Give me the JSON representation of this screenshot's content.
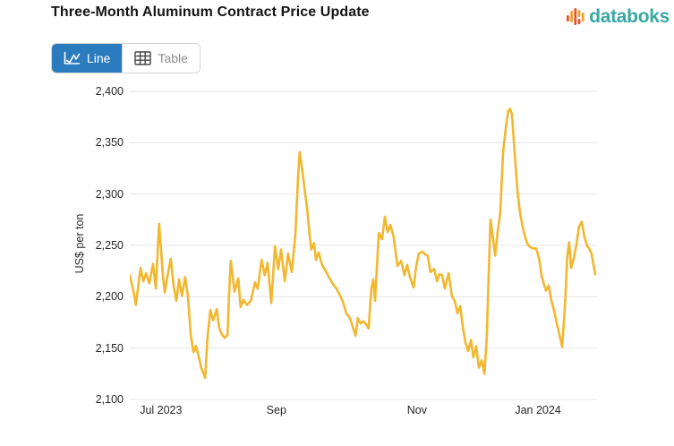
{
  "page": {
    "title": "Three-Month Aluminum Contract Price Update"
  },
  "brand": {
    "name": "databoks",
    "wordmark_color": "#38A9A2",
    "icon": "bar-wave-icon",
    "icon_colors": {
      "red": "#E8502C",
      "orange": "#F2A12D"
    }
  },
  "toolbar": {
    "line_label": "Line",
    "table_label": "Table",
    "active_color": "#2B7CBF",
    "active_text_color": "#ffffff",
    "inactive_text_color": "#8d8d8d"
  },
  "chart_data": {
    "type": "line",
    "title": "Three-Month Aluminum Contract Price Update",
    "xlabel": "",
    "ylabel": "US$ per ton",
    "ylim": [
      2100,
      2400
    ],
    "y_ticks": [
      2100,
      2150,
      2200,
      2250,
      2300,
      2350,
      2400
    ],
    "y_tick_labels": [
      "2,100",
      "2,150",
      "2,200",
      "2,250",
      "2,300",
      "2,350",
      "2,400"
    ],
    "x_ticks": [
      {
        "label": "Jul 2023",
        "t": 0.067
      },
      {
        "label": "Sep",
        "t": 0.315
      },
      {
        "label": "Nov",
        "t": 0.617
      },
      {
        "label": "Jan 2024",
        "t": 0.877
      }
    ],
    "x_unit": "daily prices, mid-June 2023 to early-February 2024 (t = fraction of x-axis)",
    "grid": true,
    "grid_color": "#e5e5e5",
    "legend": false,
    "line_color": "#F1B72F",
    "points": [
      [
        0.0,
        2221
      ],
      [
        0.008,
        2205
      ],
      [
        0.013,
        2192
      ],
      [
        0.023,
        2228
      ],
      [
        0.029,
        2215
      ],
      [
        0.035,
        2223
      ],
      [
        0.042,
        2213
      ],
      [
        0.05,
        2232
      ],
      [
        0.056,
        2208
      ],
      [
        0.06,
        2245
      ],
      [
        0.063,
        2271
      ],
      [
        0.067,
        2247
      ],
      [
        0.071,
        2222
      ],
      [
        0.075,
        2204
      ],
      [
        0.083,
        2225
      ],
      [
        0.088,
        2237
      ],
      [
        0.094,
        2211
      ],
      [
        0.1,
        2196
      ],
      [
        0.106,
        2217
      ],
      [
        0.112,
        2201
      ],
      [
        0.119,
        2219
      ],
      [
        0.125,
        2200
      ],
      [
        0.131,
        2163
      ],
      [
        0.137,
        2146
      ],
      [
        0.142,
        2152
      ],
      [
        0.148,
        2142
      ],
      [
        0.154,
        2130
      ],
      [
        0.162,
        2121
      ],
      [
        0.167,
        2160
      ],
      [
        0.173,
        2187
      ],
      [
        0.179,
        2177
      ],
      [
        0.187,
        2188
      ],
      [
        0.192,
        2170
      ],
      [
        0.198,
        2163
      ],
      [
        0.204,
        2160
      ],
      [
        0.21,
        2163
      ],
      [
        0.213,
        2200
      ],
      [
        0.217,
        2235
      ],
      [
        0.225,
        2205
      ],
      [
        0.233,
        2218
      ],
      [
        0.238,
        2190
      ],
      [
        0.244,
        2197
      ],
      [
        0.252,
        2192
      ],
      [
        0.26,
        2196
      ],
      [
        0.269,
        2214
      ],
      [
        0.275,
        2208
      ],
      [
        0.283,
        2236
      ],
      [
        0.29,
        2221
      ],
      [
        0.296,
        2233
      ],
      [
        0.304,
        2194
      ],
      [
        0.312,
        2249
      ],
      [
        0.319,
        2227
      ],
      [
        0.325,
        2246
      ],
      [
        0.333,
        2215
      ],
      [
        0.34,
        2242
      ],
      [
        0.348,
        2224
      ],
      [
        0.356,
        2262
      ],
      [
        0.362,
        2320
      ],
      [
        0.365,
        2341
      ],
      [
        0.371,
        2322
      ],
      [
        0.377,
        2300
      ],
      [
        0.381,
        2286
      ],
      [
        0.387,
        2258
      ],
      [
        0.39,
        2246
      ],
      [
        0.396,
        2252
      ],
      [
        0.4,
        2236
      ],
      [
        0.406,
        2243
      ],
      [
        0.413,
        2231
      ],
      [
        0.421,
        2225
      ],
      [
        0.429,
        2218
      ],
      [
        0.437,
        2212
      ],
      [
        0.444,
        2208
      ],
      [
        0.452,
        2201
      ],
      [
        0.458,
        2195
      ],
      [
        0.465,
        2184
      ],
      [
        0.473,
        2179
      ],
      [
        0.481,
        2168
      ],
      [
        0.485,
        2162
      ],
      [
        0.49,
        2179
      ],
      [
        0.496,
        2174
      ],
      [
        0.502,
        2176
      ],
      [
        0.508,
        2173
      ],
      [
        0.513,
        2169
      ],
      [
        0.519,
        2208
      ],
      [
        0.523,
        2217
      ],
      [
        0.527,
        2196
      ],
      [
        0.535,
        2262
      ],
      [
        0.542,
        2256
      ],
      [
        0.548,
        2278
      ],
      [
        0.554,
        2263
      ],
      [
        0.56,
        2270
      ],
      [
        0.567,
        2258
      ],
      [
        0.575,
        2230
      ],
      [
        0.583,
        2235
      ],
      [
        0.59,
        2221
      ],
      [
        0.596,
        2231
      ],
      [
        0.602,
        2219
      ],
      [
        0.61,
        2209
      ],
      [
        0.615,
        2229
      ],
      [
        0.621,
        2242
      ],
      [
        0.629,
        2244
      ],
      [
        0.635,
        2241
      ],
      [
        0.64,
        2240
      ],
      [
        0.646,
        2224
      ],
      [
        0.654,
        2227
      ],
      [
        0.66,
        2215
      ],
      [
        0.665,
        2222
      ],
      [
        0.671,
        2221
      ],
      [
        0.677,
        2208
      ],
      [
        0.685,
        2223
      ],
      [
        0.692,
        2201
      ],
      [
        0.698,
        2196
      ],
      [
        0.704,
        2184
      ],
      [
        0.71,
        2191
      ],
      [
        0.715,
        2172
      ],
      [
        0.721,
        2156
      ],
      [
        0.727,
        2147
      ],
      [
        0.733,
        2158
      ],
      [
        0.738,
        2141
      ],
      [
        0.744,
        2152
      ],
      [
        0.75,
        2131
      ],
      [
        0.756,
        2138
      ],
      [
        0.762,
        2125
      ],
      [
        0.767,
        2160
      ],
      [
        0.771,
        2220
      ],
      [
        0.775,
        2275
      ],
      [
        0.781,
        2255
      ],
      [
        0.785,
        2240
      ],
      [
        0.79,
        2262
      ],
      [
        0.796,
        2282
      ],
      [
        0.802,
        2340
      ],
      [
        0.808,
        2365
      ],
      [
        0.813,
        2381
      ],
      [
        0.817,
        2383
      ],
      [
        0.821,
        2378
      ],
      [
        0.827,
        2340
      ],
      [
        0.833,
        2302
      ],
      [
        0.838,
        2283
      ],
      [
        0.844,
        2268
      ],
      [
        0.85,
        2257
      ],
      [
        0.856,
        2250
      ],
      [
        0.862,
        2248
      ],
      [
        0.867,
        2247
      ],
      [
        0.873,
        2247
      ],
      [
        0.879,
        2238
      ],
      [
        0.885,
        2220
      ],
      [
        0.888,
        2215
      ],
      [
        0.894,
        2206
      ],
      [
        0.9,
        2211
      ],
      [
        0.906,
        2196
      ],
      [
        0.912,
        2186
      ],
      [
        0.917,
        2175
      ],
      [
        0.923,
        2163
      ],
      [
        0.929,
        2151
      ],
      [
        0.935,
        2192
      ],
      [
        0.94,
        2240
      ],
      [
        0.944,
        2253
      ],
      [
        0.948,
        2228
      ],
      [
        0.954,
        2238
      ],
      [
        0.96,
        2252
      ],
      [
        0.965,
        2268
      ],
      [
        0.971,
        2273
      ],
      [
        0.977,
        2258
      ],
      [
        0.983,
        2249
      ],
      [
        0.987,
        2247
      ],
      [
        0.992,
        2242
      ],
      [
        0.996,
        2232
      ],
      [
        1.0,
        2222
      ]
    ]
  }
}
